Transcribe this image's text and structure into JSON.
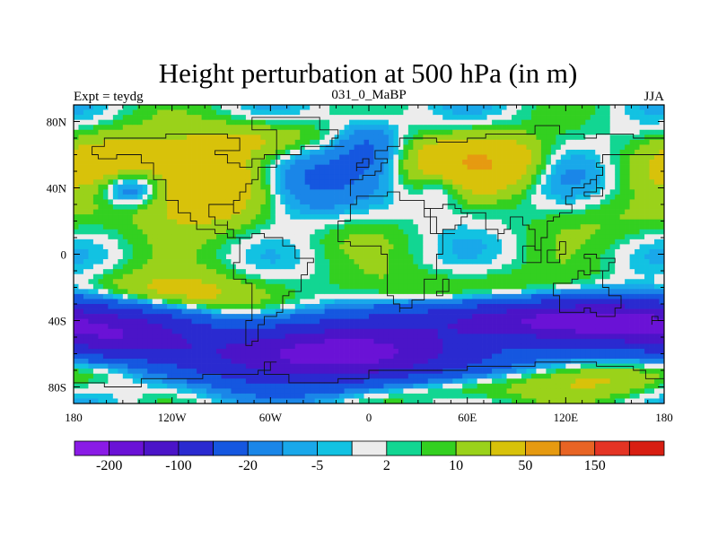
{
  "chart_data": {
    "type": "heatmap",
    "title": "Height perturbation at 500 hPa (in m)",
    "left_string": "Expt = teydg",
    "center_string": "031_0_MaBP",
    "right_string": "JJA",
    "x_ticks": [
      {
        "value": -180,
        "label": "180"
      },
      {
        "value": -120,
        "label": "120W"
      },
      {
        "value": -60,
        "label": "60W"
      },
      {
        "value": 0,
        "label": "0"
      },
      {
        "value": 60,
        "label": "60E"
      },
      {
        "value": 120,
        "label": "120E"
      },
      {
        "value": 180,
        "label": "180"
      }
    ],
    "y_ticks": [
      {
        "value": 80,
        "label": "80N"
      },
      {
        "value": 40,
        "label": "40N"
      },
      {
        "value": 0,
        "label": "0"
      },
      {
        "value": -40,
        "label": "40S"
      },
      {
        "value": -80,
        "label": "80S"
      }
    ],
    "xlim": [
      -180,
      180
    ],
    "ylim": [
      -90,
      90
    ],
    "contour_levels": [
      -200,
      -150,
      -100,
      -50,
      -20,
      -10,
      -5,
      -2,
      2,
      5,
      10,
      20,
      50,
      100,
      150,
      200
    ],
    "colorbar_labels": [
      {
        "after_box": 1,
        "label": "-200"
      },
      {
        "after_box": 3,
        "label": "-100"
      },
      {
        "after_box": 5,
        "label": "-20"
      },
      {
        "after_box": 7,
        "label": "-5"
      },
      {
        "after_box": 9,
        "label": "2"
      },
      {
        "after_box": 11,
        "label": "10"
      },
      {
        "after_box": 13,
        "label": "50"
      },
      {
        "after_box": 15,
        "label": "150"
      }
    ],
    "colors": [
      "#8a1be6",
      "#6a12d6",
      "#4b14c8",
      "#2a2ad0",
      "#1557e0",
      "#1a86e8",
      "#19a8ea",
      "#12c2e2",
      "#ececec",
      "#12d692",
      "#33d020",
      "#9ad21a",
      "#d8c20a",
      "#e69a10",
      "#e86424",
      "#e43424",
      "#d81e12"
    ]
  }
}
